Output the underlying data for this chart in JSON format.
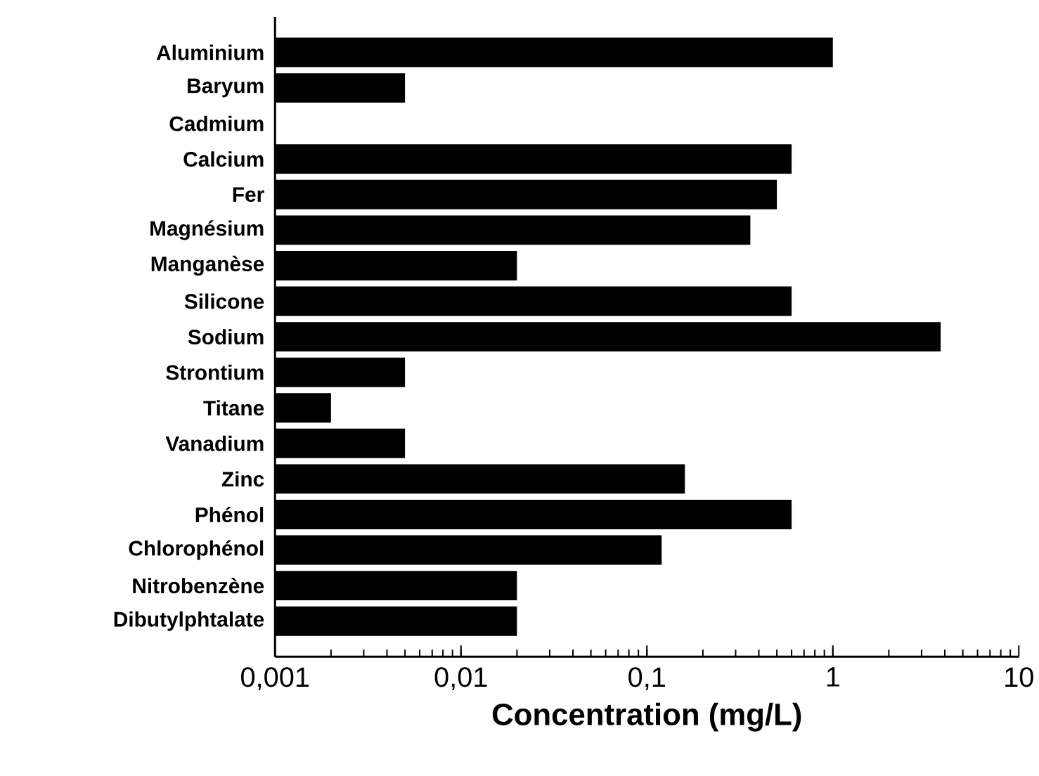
{
  "chart_data": {
    "type": "bar",
    "orientation": "horizontal",
    "log": "x",
    "xlabel": "Concentration (mg/L)",
    "categories": [
      "Aluminium",
      "Baryum",
      "Cadmium",
      "Calcium",
      "Fer",
      "Magnésium",
      "Manganèse",
      "Silicone",
      "Sodium",
      "Strontium",
      "Titane",
      "Vanadium",
      "Zinc",
      "Phénol",
      "Chlorophénol",
      "Nitrobenzène",
      "Dibutylphtalate"
    ],
    "values": [
      1,
      0.005,
      null,
      0.6,
      0.5,
      0.36,
      0.02,
      0.6,
      3.8,
      0.005,
      0.002,
      0.005,
      0.16,
      0.6,
      0.12,
      0.02,
      0.02
    ],
    "color": "#000000",
    "xlim": [
      0.001,
      10
    ],
    "xticks": [
      {
        "value": 0.001,
        "label": "0,001"
      },
      {
        "value": 0.01,
        "label": "0,01"
      },
      {
        "value": 0.1,
        "label": "0,1"
      },
      {
        "value": 1,
        "label": "1"
      },
      {
        "value": 10,
        "label": "10"
      }
    ]
  }
}
